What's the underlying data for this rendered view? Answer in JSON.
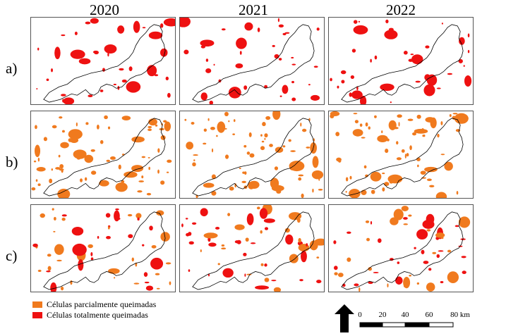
{
  "columns": [
    "2020",
    "2021",
    "2022"
  ],
  "rows": [
    "a)",
    "b)",
    "c)"
  ],
  "legend": [
    {
      "label": "Células parcialmente queimadas",
      "color": "#ff7f00"
    },
    {
      "label": "Células totalmente queimadas",
      "color": "#ff0000"
    }
  ],
  "scale_bar": {
    "ticks": [
      "0",
      "20",
      "40",
      "60",
      "80 km"
    ]
  },
  "north_arrow": "north-arrow-icon",
  "colors": {
    "partial": "#f07a1e",
    "total": "#ee1111",
    "outline": "#000000"
  }
}
